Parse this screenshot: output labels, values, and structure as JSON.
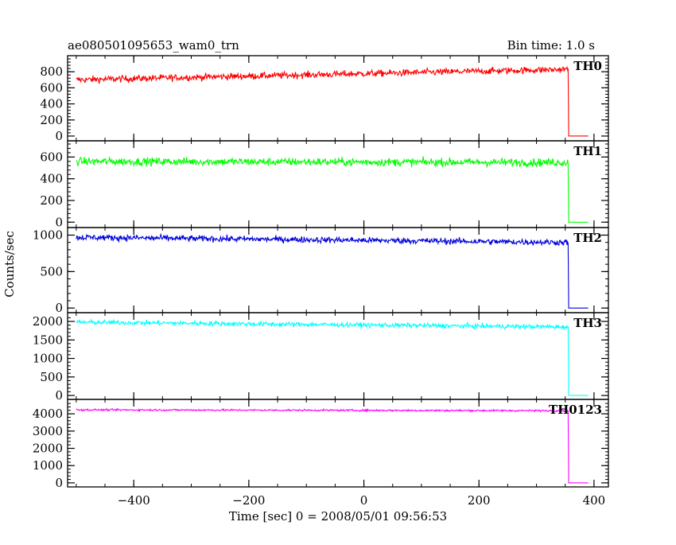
{
  "header": {
    "title": "ae080501095653_wam0_trn",
    "bin_time": "Bin time: 1.0 s"
  },
  "chart_data": {
    "type": "line",
    "xlabel": "Time [sec] 0 = 2008/05/01 09:56:53",
    "ylabel": "Counts/sec",
    "xlim": [
      -515,
      425
    ],
    "x_ticks": [
      -400,
      -200,
      0,
      200,
      400
    ],
    "x_tick_labels": [
      "−400",
      "−200",
      "0",
      "200",
      "400"
    ],
    "x_start": -500,
    "x_drop": 355,
    "x_end": 390,
    "series": [
      {
        "name": "TH0",
        "color": "#ff0000",
        "ylim": [
          -20,
          960
        ],
        "y_ticks": [
          0,
          200,
          400,
          600,
          800
        ],
        "start_value": 700,
        "end_value": 830,
        "noise": 40,
        "drop_value": 0
      },
      {
        "name": "TH1",
        "color": "#00ff00",
        "ylim": [
          -20,
          720
        ],
        "y_ticks": [
          0,
          200,
          400,
          600
        ],
        "start_value": 560,
        "end_value": 550,
        "noise": 35,
        "drop_value": 0
      },
      {
        "name": "TH2",
        "color": "#0000dd",
        "ylim": [
          -20,
          1060
        ],
        "y_ticks": [
          0,
          500,
          1000
        ],
        "start_value": 970,
        "end_value": 900,
        "noise": 40,
        "drop_value": 0
      },
      {
        "name": "TH3",
        "color": "#00ffff",
        "ylim": [
          -20,
          2150
        ],
        "y_ticks": [
          0,
          500,
          1000,
          1500,
          2000
        ],
        "start_value": 1980,
        "end_value": 1850,
        "noise": 60,
        "drop_value": 0
      },
      {
        "name": "TH0123",
        "color": "#ff00ff",
        "ylim": [
          -50,
          4650
        ],
        "y_ticks": [
          0,
          1000,
          2000,
          3000,
          4000
        ],
        "start_value": 4230,
        "end_value": 4180,
        "noise": 50,
        "drop_value": 0
      }
    ]
  }
}
